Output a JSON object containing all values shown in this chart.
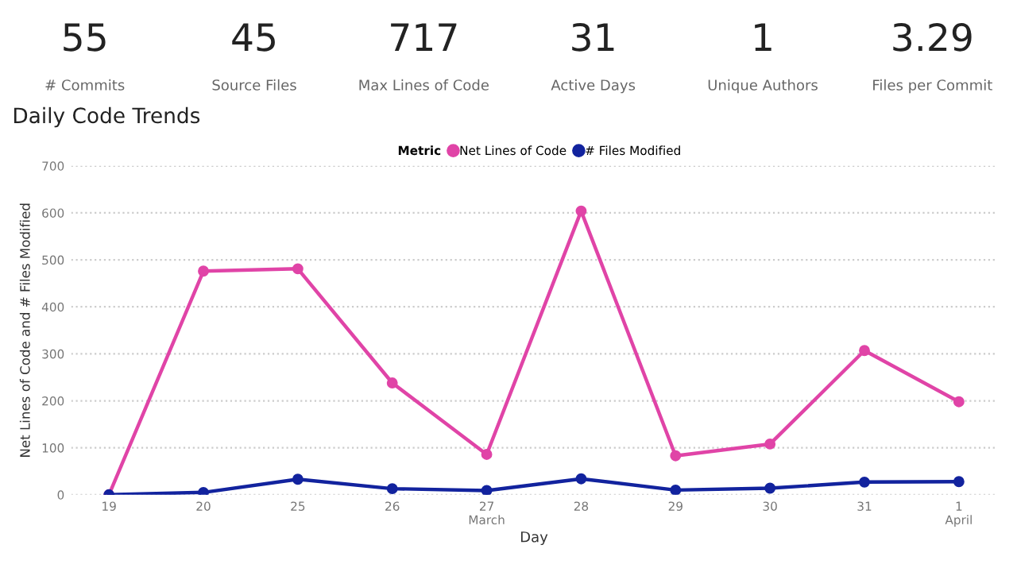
{
  "chart_data": [
    {
      "type": "other",
      "annotations": [
        "55",
        "# Commits",
        "45",
        "Source Files",
        "717",
        "Max Lines of Code",
        "31",
        "Active Days",
        "1",
        "Unique Authors",
        "3.29",
        "Files per Commit"
      ]
    },
    {
      "type": "line",
      "title": "Daily Code Trends",
      "xlabel": "Day",
      "ylabel": "Net Lines of Code and # Files Modified",
      "legend_title": "Metric",
      "legend": "top",
      "grid": "y",
      "marker": "circle",
      "line_style": "solid",
      "categories": [
        "19",
        "20",
        "25",
        "26",
        "27\nMarch",
        "28",
        "29",
        "30",
        "31",
        "1\nApril"
      ],
      "ylim": [
        0,
        700
      ],
      "yticks": [
        0,
        100,
        200,
        300,
        400,
        500,
        600,
        700
      ],
      "series": [
        {
          "name": "Net Lines of Code",
          "color": "#e044a7",
          "values": [
            0,
            476,
            481,
            238,
            86,
            604,
            83,
            108,
            307,
            198
          ]
        },
        {
          "name": "# Files Modified",
          "color": "#12239e",
          "values": [
            0,
            5,
            33,
            13,
            9,
            34,
            10,
            14,
            27,
            28
          ]
        }
      ]
    }
  ]
}
